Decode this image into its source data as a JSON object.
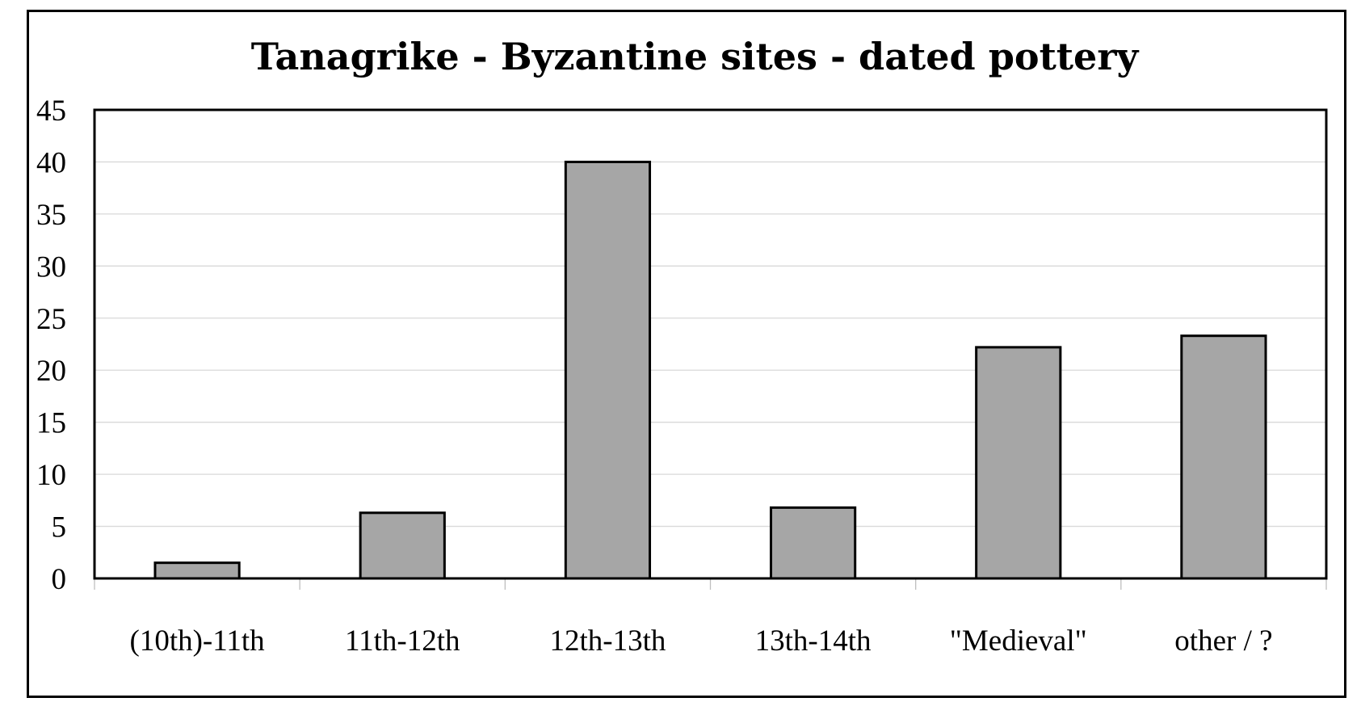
{
  "chart_data": {
    "type": "bar",
    "title": "Tanagrike - Byzantine sites - dated pottery",
    "xlabel": "",
    "ylabel": "",
    "categories": [
      "(10th)-11th",
      "11th-12th",
      "12th-13th",
      "13th-14th",
      "\"Medieval\"",
      "other / ?"
    ],
    "values": [
      1.5,
      6.3,
      40,
      6.8,
      22.2,
      23.3
    ],
    "ylim": [
      0,
      45
    ],
    "yticks": [
      0,
      5,
      10,
      15,
      20,
      25,
      30,
      35,
      40,
      45
    ],
    "grid": true,
    "legend": "none",
    "colors": {
      "bar_fill": "#a6a6a6",
      "bar_stroke": "#000000",
      "grid": "#d9d9d9"
    }
  }
}
